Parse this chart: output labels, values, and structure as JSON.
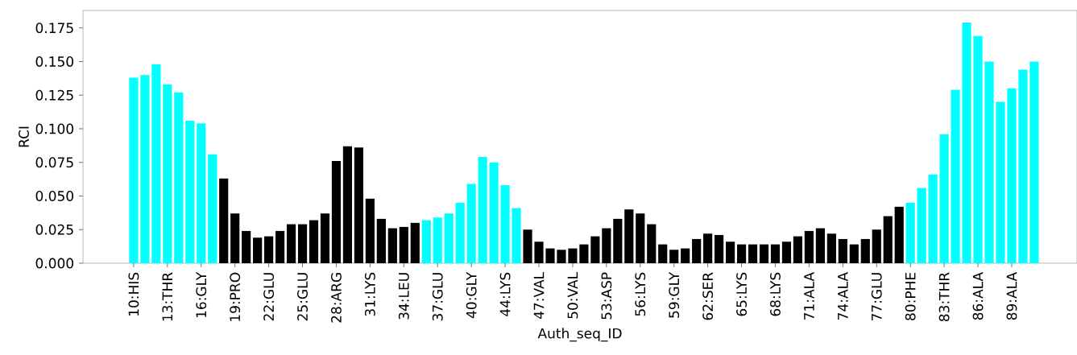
{
  "chart_data": {
    "type": "bar",
    "xlabel": "Auth_seq_ID",
    "ylabel": "RCI",
    "categories": [
      "10:HIS",
      null,
      null,
      "13:THR",
      null,
      null,
      "16:GLY",
      null,
      null,
      "19:PRO",
      null,
      null,
      "22:GLU",
      null,
      null,
      "25:GLU",
      null,
      null,
      "28:ARG",
      null,
      null,
      "31:LYS",
      null,
      null,
      "34:LEU",
      null,
      null,
      "37:GLU",
      null,
      null,
      "40:GLY",
      null,
      null,
      "44:LYS",
      null,
      null,
      "47:VAL",
      null,
      null,
      "50:VAL",
      null,
      null,
      "53:ASP",
      null,
      null,
      "56:LYS",
      null,
      null,
      "59:GLY",
      null,
      null,
      "62:SER",
      null,
      null,
      "65:LYS",
      null,
      null,
      "68:LYS",
      null,
      null,
      "71:ALA",
      null,
      null,
      "74:ALA",
      null,
      null,
      "77:GLU",
      null,
      null,
      "80:PHE",
      null,
      null,
      "83:THR",
      null,
      null,
      "86:ALA",
      null,
      null,
      "89:ALA",
      null,
      null
    ],
    "values": [
      0.138,
      0.14,
      0.148,
      0.133,
      0.127,
      0.106,
      0.104,
      0.081,
      0.063,
      0.037,
      0.024,
      0.019,
      0.02,
      0.024,
      0.029,
      0.029,
      0.032,
      0.037,
      0.076,
      0.087,
      0.086,
      0.048,
      0.033,
      0.026,
      0.027,
      0.03,
      0.032,
      0.034,
      0.037,
      0.045,
      0.059,
      0.079,
      0.075,
      0.058,
      0.041,
      0.025,
      0.016,
      0.011,
      0.01,
      0.011,
      0.014,
      0.02,
      0.026,
      0.033,
      0.04,
      0.037,
      0.029,
      0.014,
      0.01,
      0.011,
      0.018,
      0.022,
      0.021,
      0.016,
      0.014,
      0.014,
      0.014,
      0.014,
      0.016,
      0.02,
      0.024,
      0.026,
      0.022,
      0.018,
      0.014,
      0.018,
      0.025,
      0.035,
      0.042,
      0.045,
      0.056,
      0.066,
      0.096,
      0.129,
      0.179,
      0.169,
      0.15,
      0.12,
      0.13,
      0.144,
      0.15
    ],
    "colors": [
      "#00ffff",
      "#00ffff",
      "#00ffff",
      "#00ffff",
      "#00ffff",
      "#00ffff",
      "#00ffff",
      "#00ffff",
      "#000000",
      "#000000",
      "#000000",
      "#000000",
      "#000000",
      "#000000",
      "#000000",
      "#000000",
      "#000000",
      "#000000",
      "#000000",
      "#000000",
      "#000000",
      "#000000",
      "#000000",
      "#000000",
      "#000000",
      "#000000",
      "#00ffff",
      "#00ffff",
      "#00ffff",
      "#00ffff",
      "#00ffff",
      "#00ffff",
      "#00ffff",
      "#00ffff",
      "#00ffff",
      "#000000",
      "#000000",
      "#000000",
      "#000000",
      "#000000",
      "#000000",
      "#000000",
      "#000000",
      "#000000",
      "#000000",
      "#000000",
      "#000000",
      "#000000",
      "#000000",
      "#000000",
      "#000000",
      "#000000",
      "#000000",
      "#000000",
      "#000000",
      "#000000",
      "#000000",
      "#000000",
      "#000000",
      "#000000",
      "#000000",
      "#000000",
      "#000000",
      "#000000",
      "#000000",
      "#000000",
      "#000000",
      "#000000",
      "#000000",
      "#00ffff",
      "#00ffff",
      "#00ffff",
      "#00ffff",
      "#00ffff",
      "#00ffff",
      "#00ffff",
      "#00ffff",
      "#00ffff",
      "#00ffff",
      "#00ffff",
      "#00ffff"
    ],
    "ylim": [
      0,
      0.188
    ],
    "yticks": [
      {
        "value": 0,
        "label": "0.000"
      },
      {
        "value": 0.025,
        "label": "0.025"
      },
      {
        "value": 0.05,
        "label": "0.050"
      },
      {
        "value": 0.075,
        "label": "0.075"
      },
      {
        "value": 0.1,
        "label": "0.100"
      },
      {
        "value": 0.125,
        "label": "0.125"
      },
      {
        "value": 0.15,
        "label": "0.150"
      },
      {
        "value": 0.175,
        "label": "0.175"
      }
    ],
    "grid": false
  }
}
